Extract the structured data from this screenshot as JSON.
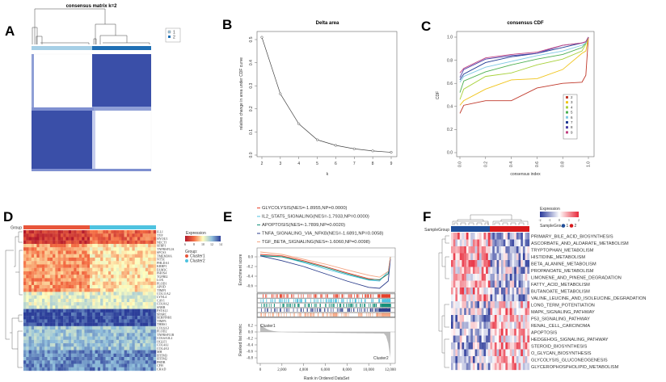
{
  "panels": {
    "A": "A",
    "B": "B",
    "C": "C",
    "D": "D",
    "E": "E",
    "F": "F"
  },
  "chart_data": [
    {
      "id": "A",
      "type": "heatmap",
      "title": "consensus matrix k=2",
      "legend": [
        "1",
        "2"
      ],
      "colors": {
        "cluster1": "#a6cfe6",
        "cluster2": "#1f6fb4",
        "high": "#3a4fa8"
      }
    },
    {
      "id": "B",
      "type": "line",
      "title": "Delta area",
      "xlabel": "k",
      "ylabel": "relative change in area under CDF curve",
      "x": [
        2,
        3,
        4,
        5,
        6,
        7,
        8,
        9
      ],
      "values": [
        0.51,
        0.265,
        0.135,
        0.066,
        0.042,
        0.027,
        0.018,
        0.012
      ],
      "xticks": [
        "2",
        "3",
        "4",
        "5",
        "6",
        "7",
        "8",
        "9"
      ],
      "yticks": [
        "0.0",
        "0.1",
        "0.2",
        "0.3",
        "0.4",
        "0.5"
      ],
      "ylim": [
        0,
        0.5
      ]
    },
    {
      "id": "C",
      "type": "line",
      "title": "consensus CDF",
      "xlabel": "consensus index",
      "ylabel": "CDF",
      "xticks": [
        "0.0",
        "0.2",
        "0.4",
        "0.6",
        "0.8",
        "1.0"
      ],
      "yticks": [
        "0.0",
        "0.2",
        "0.4",
        "0.6",
        "0.8",
        "1.0"
      ],
      "xlim": [
        0,
        1
      ],
      "ylim": [
        0,
        1
      ],
      "legend_position": "right-middle",
      "x": [
        0,
        0.03,
        0.2,
        0.4,
        0.6,
        0.8,
        0.95,
        0.98,
        1.0
      ],
      "series": [
        {
          "name": "2",
          "color": "#c0392b",
          "values": [
            0.34,
            0.41,
            0.45,
            0.45,
            0.56,
            0.6,
            0.61,
            0.67,
            1.0
          ]
        },
        {
          "name": "3",
          "color": "#f0c419",
          "values": [
            0.41,
            0.45,
            0.55,
            0.63,
            0.64,
            0.72,
            0.86,
            0.88,
            1.0
          ]
        },
        {
          "name": "4",
          "color": "#a8d13b",
          "values": [
            0.46,
            0.55,
            0.66,
            0.69,
            0.76,
            0.81,
            0.88,
            0.94,
            1.0
          ]
        },
        {
          "name": "5",
          "color": "#4caf50",
          "values": [
            0.52,
            0.62,
            0.7,
            0.76,
            0.81,
            0.85,
            0.91,
            0.95,
            1.0
          ]
        },
        {
          "name": "6",
          "color": "#7ec8e3",
          "values": [
            0.61,
            0.66,
            0.74,
            0.79,
            0.84,
            0.88,
            0.93,
            0.95,
            1.0
          ]
        },
        {
          "name": "7",
          "color": "#1f3a93",
          "values": [
            0.63,
            0.68,
            0.78,
            0.83,
            0.86,
            0.91,
            0.95,
            0.96,
            1.0
          ]
        },
        {
          "name": "8",
          "color": "#4b3fa8",
          "values": [
            0.65,
            0.72,
            0.81,
            0.84,
            0.86,
            0.93,
            0.95,
            0.96,
            1.0
          ]
        },
        {
          "name": "9",
          "color": "#c04080",
          "values": [
            0.69,
            0.73,
            0.82,
            0.85,
            0.87,
            0.93,
            0.95,
            0.96,
            1.0
          ]
        }
      ]
    },
    {
      "id": "D",
      "type": "heatmap",
      "group_label": "Group",
      "legend_title": "Expression",
      "legend_ticks": [
        "6",
        "8",
        "10",
        "12",
        "14"
      ],
      "group_title": "Group:",
      "groups": [
        {
          "name": "Cluster1",
          "color": "#e8553a"
        },
        {
          "name": "Cluster2",
          "color": "#4ec3e0"
        }
      ],
      "rows": [
        "ILLI",
        "TYF",
        "HYOU1",
        "NECTI",
        "SFRP1",
        "TNFRSF12A",
        "SPCS3",
        "TMEM30A",
        "NT5E",
        "PHLDA1",
        "KRBP1",
        "FAM3C",
        "PHOS4",
        "TGFBI2",
        "LOX",
        "PLOD1",
        "APOD",
        "TIMP1",
        "COL11A2",
        "LYNL4",
        "CAV1",
        "COL8A2",
        "SNRB",
        "FSTAL1",
        "SPARC",
        "SERPINH1",
        "TIMP3",
        "THBS1",
        "COL6A3",
        "PLOD2",
        "TNFRSF11B",
        "COL6A3L2",
        "OGLF1",
        "COL4A1",
        "COL4A3",
        "MH",
        "IFITM3",
        "IFITM2",
        "PRDB",
        "CFH",
        "CHAD"
      ]
    },
    {
      "id": "E",
      "type": "line",
      "ylabel_top": "Enrichment score",
      "ylabel_bottom": "Ranked list metric",
      "xlabel": "Rank in Ordered DataSet",
      "xticks": [
        "0",
        "2,000",
        "4,000",
        "6,000",
        "8,000",
        "10,000",
        "12,000"
      ],
      "es_yticks": [
        "0.0",
        "-0.2",
        "-0.4",
        "-0.6"
      ],
      "metric_yticks": [
        "0.2",
        "0.0",
        "-0.2",
        "-0.4",
        "-0.6",
        "-0.8"
      ],
      "annotations": [
        "Cluster1",
        "Cluster2"
      ],
      "x": [
        0,
        2000,
        4000,
        6000,
        8000,
        10000,
        11000,
        11800,
        12000
      ],
      "series": [
        {
          "name": "GLYCOLYSIS(NES=-1.8955,NP=0.0000)",
          "color": "#e8402a",
          "values": [
            0.05,
            0.02,
            -0.08,
            -0.2,
            -0.33,
            -0.45,
            -0.48,
            -0.35,
            0.0
          ]
        },
        {
          "name": "IL2_STAT5_SIGNALING(NES=-1.7933,NP=0.0000)",
          "color": "#4ec3e0",
          "values": [
            0.03,
            0.0,
            -0.12,
            -0.25,
            -0.37,
            -0.48,
            -0.5,
            -0.3,
            0.0
          ]
        },
        {
          "name": "APOPTOSIS(NES=-1.7899,NP=0.0020)",
          "color": "#14907a",
          "values": [
            0.02,
            0.0,
            -0.1,
            -0.22,
            -0.35,
            -0.47,
            -0.47,
            -0.35,
            0.0
          ]
        },
        {
          "name": "TNFA_SIGNALING_VIA_NFKB(NES=-1.6891,NP=0.0058)",
          "color": "#2c3e8c",
          "values": [
            0.02,
            -0.08,
            -0.2,
            -0.35,
            -0.5,
            -0.63,
            -0.65,
            -0.5,
            -0.05
          ]
        },
        {
          "name": "TGF_BETA_SIGNALING(NES=-1.6060,NP=0.0098)",
          "color": "#f4a582",
          "values": [
            0.1,
            0.05,
            -0.05,
            -0.15,
            -0.27,
            -0.38,
            -0.42,
            -0.3,
            0.0
          ]
        }
      ],
      "es_ylim": [
        -0.7,
        0.15
      ],
      "metric_ylim": [
        -0.9,
        0.3
      ]
    },
    {
      "id": "F",
      "type": "heatmap",
      "group_label": "SampleGroup",
      "legend_title": "Expression",
      "legend_ticks": [
        "-2",
        "-1",
        "0",
        "1",
        "2"
      ],
      "legend_group_label": "SampleGroup",
      "groups": [
        {
          "name": "1",
          "color": "#1f4e9a"
        },
        {
          "name": "2",
          "color": "#d7191c"
        }
      ],
      "rows": [
        {
          "name": "PRIMARY_BILE_ACID_BIOSYNTHESIS",
          "color": "#4a78b5"
        },
        {
          "name": "ASCORBATE_AND_ALDARATE_METABOLISM",
          "color": "#4a78b5"
        },
        {
          "name": "TRYPTOPHAN_METABOLISM",
          "color": "#4a78b5"
        },
        {
          "name": "HISTIDINE_METABOLISM",
          "color": "#4a78b5"
        },
        {
          "name": "BETA_ALANINE_METABOLISM",
          "color": "#4a78b5"
        },
        {
          "name": "PROPANOATE_METABOLISM",
          "color": "#4a78b5"
        },
        {
          "name": "LIMONENE_AND_PINENE_DEGRADATION",
          "color": "#4a78b5"
        },
        {
          "name": "FATTY_ACID_METABOLISM",
          "color": "#4a78b5"
        },
        {
          "name": "BUTANOATE_METABOLISM",
          "color": "#4a78b5"
        },
        {
          "name": "VALINE_LEUCINE_AND_ISOLEUCINE_DEGRADATION",
          "color": "#4a78b5"
        },
        {
          "name": "LONG_TERM_POTENTIATION",
          "color": "#b2182b"
        },
        {
          "name": "MAPK_SIGNALING_PATHWAY",
          "color": "#b2182b"
        },
        {
          "name": "P53_SIGNALING_PATHWAY",
          "color": "#b2182b"
        },
        {
          "name": "RENAL_CELL_CARCINOMA",
          "color": "#b2182b"
        },
        {
          "name": "APOPTOSIS",
          "color": "#b2182b"
        },
        {
          "name": "HEDGEHOG_SIGNALING_PATHWAY",
          "color": "#b2182b"
        },
        {
          "name": "STEROID_BIOSYNTHESIS",
          "color": "#b2182b"
        },
        {
          "name": "O_GLYCAN_BIOSYNTHESIS",
          "color": "#b2182b"
        },
        {
          "name": "GLYCOLYSIS_GLUCONEOGENESIS",
          "color": "#b2182b"
        },
        {
          "name": "GLYCEROPHOSPHOLIPID_METABOLISM",
          "color": "#b2182b"
        }
      ]
    }
  ]
}
